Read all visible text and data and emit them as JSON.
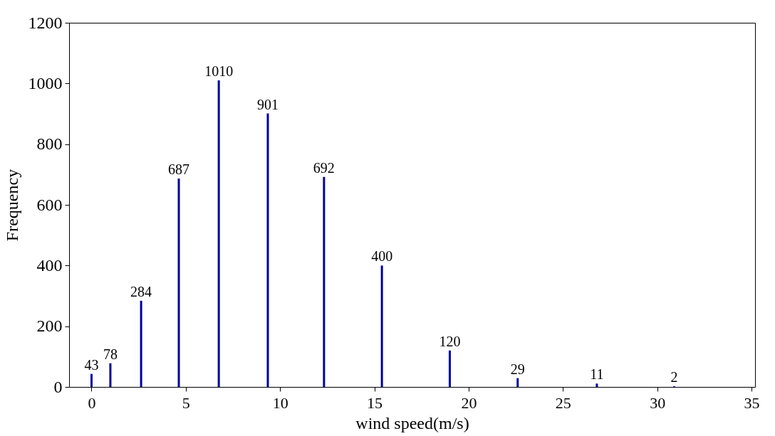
{
  "chart_data": {
    "type": "bar",
    "xlabel": "wind speed(m/s)",
    "ylabel": "Frequency",
    "x": [
      0,
      1.0,
      2.63,
      4.63,
      6.75,
      9.35,
      12.33,
      15.4,
      19.0,
      22.6,
      26.8,
      30.9
    ],
    "values": [
      43,
      78,
      284,
      687,
      1010,
      901,
      692,
      400,
      120,
      29,
      11,
      2
    ],
    "color": "#00009c",
    "data_labels": true,
    "xlim": [
      -1,
      35
    ],
    "xticks": [
      0,
      5,
      10,
      15,
      20,
      25,
      30,
      35
    ],
    "ylim": [
      0,
      1200
    ],
    "yticks": [
      0,
      200,
      400,
      600,
      800,
      1000,
      1200
    ],
    "grid": false
  }
}
